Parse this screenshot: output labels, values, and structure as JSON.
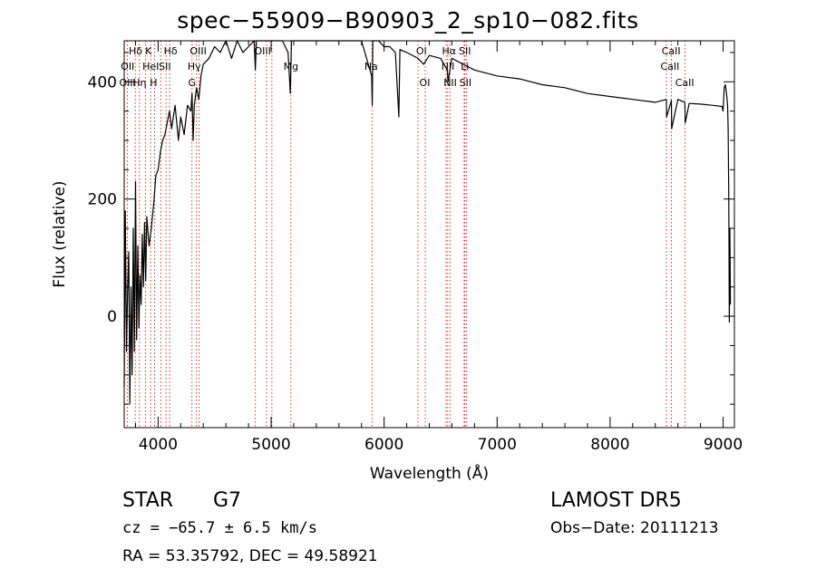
{
  "chart_data": {
    "type": "line",
    "title": "spec−55909−B90903_2_sp10−082.fits",
    "xlabel": "Wavelength (Å)",
    "ylabel": "Flux (relative)",
    "xlim": [
      3700,
      9100
    ],
    "ylim": [
      -190,
      470
    ],
    "xticks": [
      4000,
      5000,
      6000,
      7000,
      8000,
      9000
    ],
    "yticks": [
      0,
      200,
      400
    ],
    "series": [
      {
        "color": "#000000",
        "x": [
          3700,
          3710,
          3720,
          3730,
          3740,
          3750,
          3760,
          3770,
          3780,
          3790,
          3800,
          3810,
          3820,
          3830,
          3840,
          3850,
          3860,
          3870,
          3880,
          3890,
          3900,
          3920,
          3940,
          3960,
          3980,
          4000,
          4020,
          4040,
          4060,
          4080,
          4100,
          4120,
          4150,
          4180,
          4200,
          4230,
          4260,
          4290,
          4300,
          4310,
          4320,
          4340,
          4360,
          4380,
          4400,
          4450,
          4500,
          4550,
          4600,
          4650,
          4700,
          4750,
          4800,
          4850,
          4860,
          4870,
          4900,
          4950,
          5000,
          5050,
          5100,
          5150,
          5170,
          5180,
          5200,
          5250,
          5300,
          5350,
          5400,
          5450,
          5500,
          5600,
          5700,
          5800,
          5890,
          5895,
          5900,
          5950,
          6000,
          6050,
          6100,
          6130,
          6140,
          6200,
          6300,
          6350,
          6400,
          6500,
          6560,
          6565,
          6600,
          6700,
          6800,
          6900,
          7000,
          7200,
          7400,
          7600,
          7800,
          8000,
          8200,
          8400,
          8498,
          8500,
          8542,
          8545,
          8600,
          8662,
          8665,
          8700,
          8800,
          8900,
          8990,
          9000,
          9010,
          9020,
          9030,
          9040,
          9045,
          9050,
          9055,
          9060,
          9065
        ],
        "y": [
          -120,
          180,
          -60,
          40,
          110,
          -150,
          50,
          -100,
          150,
          -60,
          230,
          -40,
          120,
          -20,
          70,
          20,
          140,
          50,
          160,
          60,
          170,
          120,
          150,
          190,
          240,
          250,
          280,
          300,
          310,
          330,
          350,
          320,
          360,
          300,
          340,
          310,
          360,
          350,
          380,
          300,
          360,
          390,
          370,
          410,
          430,
          440,
          460,
          450,
          470,
          440,
          480,
          450,
          460,
          490,
          420,
          500,
          480,
          470,
          500,
          480,
          490,
          450,
          380,
          470,
          500,
          470,
          510,
          480,
          500,
          470,
          490,
          470,
          480,
          470,
          410,
          360,
          470,
          470,
          460,
          460,
          450,
          340,
          455,
          450,
          440,
          430,
          445,
          440,
          420,
          400,
          440,
          430,
          420,
          415,
          410,
          405,
          395,
          390,
          380,
          375,
          370,
          365,
          370,
          340,
          368,
          320,
          370,
          365,
          330,
          363,
          362,
          360,
          358,
          350,
          390,
          395,
          380,
          360,
          320,
          200,
          -10,
          150,
          20
        ]
      }
    ],
    "lines": {
      "color": "#cc0000",
      "wavelengths": [
        3727,
        3798,
        3835,
        3889,
        3934,
        3969,
        4026,
        4070,
        4102,
        4300,
        4340,
        4363,
        4861,
        4959,
        5007,
        5175,
        5893,
        6300,
        6364,
        6548,
        6563,
        6583,
        6708,
        6716,
        6731,
        8498,
        8542,
        8662
      ],
      "labels": [
        {
          "text": "Hδ",
          "wl": 3800,
          "row": 0
        },
        {
          "text": "K",
          "wl": 3915,
          "row": 0
        },
        {
          "text": "Hδ",
          "wl": 4110,
          "row": 0
        },
        {
          "text": "OIII",
          "wl": 4355,
          "row": 0
        },
        {
          "text": "OIII",
          "wl": 4925,
          "row": 0
        },
        {
          "text": "OI",
          "wl": 6330,
          "row": 0
        },
        {
          "text": "Hα",
          "wl": 6575,
          "row": 0
        },
        {
          "text": "SII",
          "wl": 6715,
          "row": 0
        },
        {
          "text": "CaII",
          "wl": 8540,
          "row": 0
        },
        {
          "text": "OII",
          "wl": 3730,
          "row": 1
        },
        {
          "text": "HeI",
          "wl": 3935,
          "row": 1
        },
        {
          "text": "SII",
          "wl": 4060,
          "row": 1
        },
        {
          "text": "Hγ",
          "wl": 4320,
          "row": 1
        },
        {
          "text": "Mg",
          "wl": 5175,
          "row": 1
        },
        {
          "text": "Na",
          "wl": 5885,
          "row": 1
        },
        {
          "text": "NII",
          "wl": 6565,
          "row": 1
        },
        {
          "text": "Li",
          "wl": 6715,
          "row": 1
        },
        {
          "text": "CaII",
          "wl": 8530,
          "row": 1
        },
        {
          "text": "OIII",
          "wl": 3730,
          "row": 2
        },
        {
          "text": "Hη",
          "wl": 3835,
          "row": 2
        },
        {
          "text": "H",
          "wl": 3960,
          "row": 2
        },
        {
          "text": "G",
          "wl": 4300,
          "row": 2
        },
        {
          "text": "OI",
          "wl": 6360,
          "row": 2
        },
        {
          "text": "NII",
          "wl": 6585,
          "row": 2
        },
        {
          "text": "SII",
          "wl": 6720,
          "row": 2
        },
        {
          "text": "CaII",
          "wl": 8660,
          "row": 2
        }
      ]
    }
  },
  "info": {
    "class": "STAR",
    "subclass": "G7",
    "cz_text": "cz = −65.7 ± 6.5 km/s",
    "coords": "RA =  53.35792, DEC =  49.58921",
    "survey": "LAMOST DR5",
    "obs_date": "Obs−Date: 20111213"
  }
}
